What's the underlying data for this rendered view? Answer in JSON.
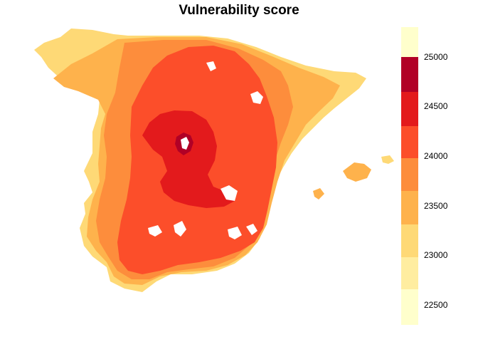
{
  "title": "Vulnerability score",
  "legend": {
    "ticks": [
      "25000",
      "24500",
      "24000",
      "23500",
      "23000",
      "22500"
    ],
    "range": [
      22300,
      25300
    ],
    "bins": [
      {
        "from": 25000,
        "to": 25300,
        "color": "#FFFFCC"
      },
      {
        "from": 24650,
        "to": 25000,
        "color": "#B10026"
      },
      {
        "from": 24300,
        "to": 24650,
        "color": "#E31A1C"
      },
      {
        "from": 23980,
        "to": 24300,
        "color": "#FC4E2A"
      },
      {
        "from": 23650,
        "to": 23980,
        "color": "#FD8D3C"
      },
      {
        "from": 23310,
        "to": 23650,
        "color": "#FEB24C"
      },
      {
        "from": 22980,
        "to": 23310,
        "color": "#FED976"
      },
      {
        "from": 22660,
        "to": 22980,
        "color": "#FFEDA0"
      },
      {
        "from": 22300,
        "to": 22660,
        "color": "#FFFFCC"
      }
    ]
  },
  "map": {
    "region": "Iberian Peninsula and Balearic Islands",
    "colors": {
      "outer": "#FED976",
      "mid": "#FEB24C",
      "ring": "#FD8D3C",
      "inner": "#FC4E2A",
      "core": "#E31A1C",
      "peak": "#B10026",
      "hole": "#FFFFFF"
    }
  }
}
